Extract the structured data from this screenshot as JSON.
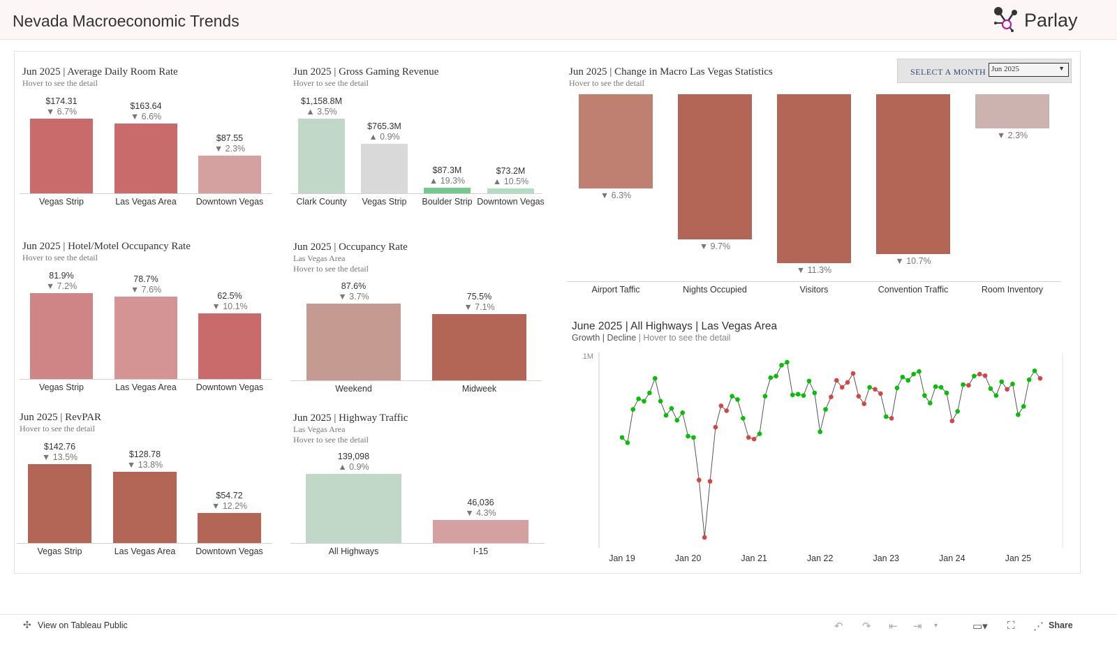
{
  "header": {
    "title": "Nevada Macroeconomic Trends",
    "logo_text": "Parlay"
  },
  "month_select": {
    "label": "SELECT A MONTH",
    "value": "Jun 2025"
  },
  "colors": {
    "growth": "#00c000",
    "decline": "#d64545",
    "line": "#555555"
  },
  "charts": [
    {
      "id": "adr",
      "title": "Jun 2025 | Average Daily Room Rate",
      "subtitles": [
        "Hover to see the detail"
      ],
      "bars": [
        {
          "category": "Vegas Strip",
          "value": 174.31,
          "label": "$174.31",
          "change": "▼ 6.7%",
          "color": "#c96b6b"
        },
        {
          "category": "Las Vegas Area",
          "value": 163.64,
          "label": "$163.64",
          "change": "▼ 6.6%",
          "color": "#c96b6b"
        },
        {
          "category": "Downtown Vegas",
          "value": 87.55,
          "label": "$87.55",
          "change": "▼ 2.3%",
          "color": "#d4a0a0"
        }
      ]
    },
    {
      "id": "ggr",
      "title": "Jun 2025 | Gross Gaming Revenue",
      "subtitles": [
        "Hover to see the detail"
      ],
      "bars": [
        {
          "category": "Clark County",
          "value": 1158.8,
          "label": "$1,158.8M",
          "change": "▲ 3.5%",
          "color": "#c1d8c9"
        },
        {
          "category": "Vegas Strip",
          "value": 765.3,
          "label": "$765.3M",
          "change": "▲ 0.9%",
          "color": "#d9d9d9"
        },
        {
          "category": "Boulder Strip",
          "value": 87.3,
          "label": "$87.3M",
          "change": "▲ 19.3%",
          "color": "#72c98f"
        },
        {
          "category": "Downtown Vegas",
          "value": 73.2,
          "label": "$73.2M",
          "change": "▲ 10.5%",
          "color": "#b4dcc0"
        }
      ]
    },
    {
      "id": "hotel_occ",
      "title": "Jun 2025 | Hotel/Motel Occupancy Rate",
      "subtitles": [
        "Hover to see the detail"
      ],
      "bars": [
        {
          "category": "Vegas Strip",
          "value": 81.9,
          "label": "81.9%",
          "change": "▼ 7.2%",
          "color": "#cf8585"
        },
        {
          "category": "Las Vegas Area",
          "value": 78.7,
          "label": "78.7%",
          "change": "▼ 7.6%",
          "color": "#d49494"
        },
        {
          "category": "Downtown Vegas",
          "value": 62.5,
          "label": "62.5%",
          "change": "▼ 10.1%",
          "color": "#c96b6b"
        }
      ]
    },
    {
      "id": "occ_rate",
      "title": "Jun 2025 | Occupancy Rate",
      "subtitles": [
        "Las Vegas Area",
        "Hover to see the detail"
      ],
      "bars": [
        {
          "category": "Weekend",
          "value": 87.6,
          "label": "87.6%",
          "change": "▼ 3.7%",
          "color": "#c49a91"
        },
        {
          "category": "Midweek",
          "value": 75.5,
          "label": "75.5%",
          "change": "▼ 7.1%",
          "color": "#b36655"
        }
      ]
    },
    {
      "id": "revpar",
      "title": "Jun 2025 | RevPAR",
      "subtitles": [
        "Hover to see the detail"
      ],
      "bars": [
        {
          "category": "Vegas Strip",
          "value": 142.76,
          "label": "$142.76",
          "change": "▼ 13.5%",
          "color": "#b36655"
        },
        {
          "category": "Las Vegas Area",
          "value": 128.78,
          "label": "$128.78",
          "change": "▼ 13.8%",
          "color": "#b36655"
        },
        {
          "category": "Downtown Vegas",
          "value": 54.72,
          "label": "$54.72",
          "change": "▼ 12.2%",
          "color": "#b36655"
        }
      ]
    },
    {
      "id": "highway",
      "title": "Jun 2025 | Highway Traffic",
      "subtitles": [
        "Las Vegas Area",
        "Hover to see the detail"
      ],
      "bars": [
        {
          "category": "All Highways",
          "value": 139098,
          "label": "139,098",
          "change": "▲ 0.9%",
          "color": "#c1d8c9"
        },
        {
          "category": "I-15",
          "value": 46036,
          "label": "46,036",
          "change": "▼ 4.3%",
          "color": "#d4a0a0"
        }
      ]
    },
    {
      "id": "macro",
      "title": "Jun 2025 | Change in Macro Las Vegas Statistics",
      "subtitles": [
        "Hover to see the detail"
      ],
      "bars": [
        {
          "category": "Airport Taffic",
          "value": -6.3,
          "label": "",
          "change": "▼ 6.3%",
          "color": "#bf8072"
        },
        {
          "category": "Nights Occupied",
          "value": -9.7,
          "label": "",
          "change": "▼ 9.7%",
          "color": "#b36655"
        },
        {
          "category": "Visitors",
          "value": -11.3,
          "label": "",
          "change": "▼ 11.3%",
          "color": "#b36655"
        },
        {
          "category": "Convention Traffic",
          "value": -10.7,
          "label": "",
          "change": "▼ 10.7%",
          "color": "#b36655"
        },
        {
          "category": "Room Inventory",
          "value": -2.3,
          "label": "",
          "change": "▼ 2.3%",
          "color": "#cdb3b0"
        }
      ]
    }
  ],
  "chart_data": {
    "type": "line",
    "title": "June 2025 | All Highways | Las Vegas Area",
    "subtitle": {
      "growth": "Growth",
      "sep1": " | ",
      "decline": "Decline",
      "sep2": " | ",
      "hover": "Hover to see the detail"
    },
    "y_tick_labels": [
      "1M"
    ],
    "x_tick_labels": [
      "Jan 19",
      "Jan 20",
      "Jan 21",
      "Jan 22",
      "Jan 23",
      "Jan 24",
      "Jan 25"
    ],
    "x_start": "Jan 2019",
    "x_unit": "month",
    "y_unit": "millions of vehicles",
    "values": [
      0.753,
      0.737,
      0.838,
      0.87,
      0.863,
      0.888,
      0.932,
      0.863,
      0.82,
      0.841,
      0.805,
      0.828,
      0.757,
      0.753,
      0.624,
      0.45,
      0.62,
      0.784,
      0.849,
      0.834,
      0.878,
      0.868,
      0.811,
      0.753,
      0.748,
      0.764,
      0.878,
      0.934,
      0.939,
      0.972,
      0.981,
      0.882,
      0.884,
      0.88,
      0.924,
      0.888,
      0.77,
      0.838,
      0.876,
      0.926,
      0.905,
      0.92,
      0.947,
      0.878,
      0.855,
      0.905,
      0.899,
      0.886,
      0.816,
      0.811,
      0.903,
      0.936,
      0.926,
      0.945,
      0.953,
      0.88,
      0.857,
      0.907,
      0.905,
      0.888,
      0.803,
      0.832,
      0.913,
      0.911,
      0.939,
      0.945,
      0.94,
      0.901,
      0.88,
      0.922,
      0.899,
      0.915,
      0.822,
      0.847,
      0.928,
      0.955,
      0.932
    ],
    "status": [
      "g",
      "g",
      "g",
      "g",
      "g",
      "g",
      "g",
      "g",
      "g",
      "g",
      "g",
      "g",
      "g",
      "g",
      "d",
      "d",
      "d",
      "d",
      "d",
      "d",
      "g",
      "g",
      "g",
      "d",
      "d",
      "g",
      "g",
      "g",
      "g",
      "g",
      "g",
      "g",
      "g",
      "g",
      "g",
      "g",
      "g",
      "g",
      "d",
      "d",
      "d",
      "d",
      "d",
      "d",
      "d",
      "g",
      "d",
      "d",
      "g",
      "d",
      "g",
      "g",
      "g",
      "g",
      "g",
      "g",
      "g",
      "g",
      "g",
      "g",
      "d",
      "g",
      "g",
      "d",
      "g",
      "d",
      "d",
      "g",
      "g",
      "g",
      "d",
      "g",
      "g",
      "g",
      "g",
      "g",
      "d"
    ],
    "grid": false
  },
  "footer": {
    "view_label": "View on Tableau Public",
    "share_label": "Share"
  }
}
